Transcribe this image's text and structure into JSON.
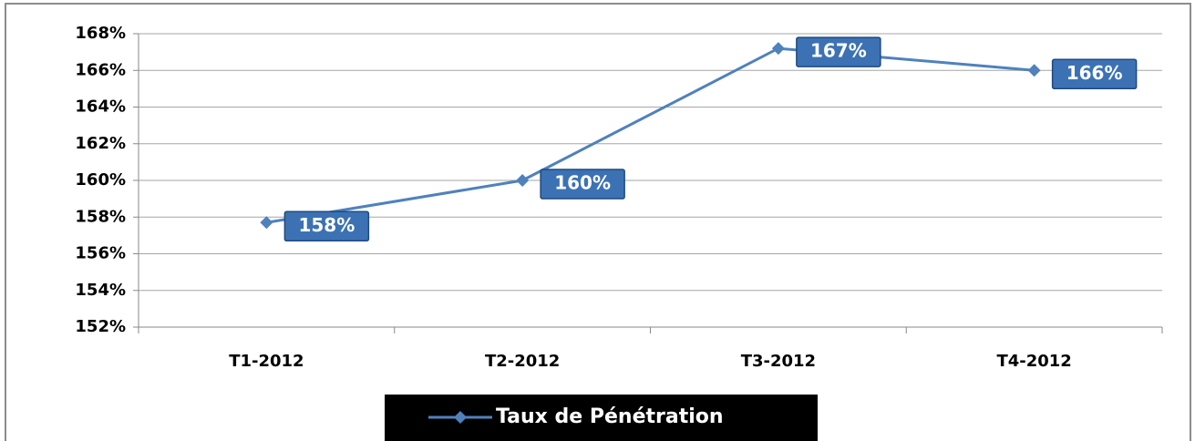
{
  "chart_data": {
    "type": "line",
    "categories": [
      "T1-2012",
      "T2-2012",
      "T3-2012",
      "T4-2012"
    ],
    "series": [
      {
        "name": "Taux de Pénétration",
        "color": "#4f81bd",
        "values": [
          157.7,
          160.0,
          167.2,
          166.0
        ],
        "value_labels": [
          "158%",
          "160%",
          "167%",
          "166%"
        ]
      }
    ],
    "ylim": [
      152,
      168
    ],
    "yticks": [
      {
        "value": 152,
        "label": "152%"
      },
      {
        "value": 154,
        "label": "154%"
      },
      {
        "value": 156,
        "label": "156%"
      },
      {
        "value": 158,
        "label": "158%"
      },
      {
        "value": 160,
        "label": "160%"
      },
      {
        "value": 162,
        "label": "162%"
      },
      {
        "value": 164,
        "label": "164%"
      },
      {
        "value": 166,
        "label": "166%"
      },
      {
        "value": 168,
        "label": "168%"
      }
    ],
    "grid": true,
    "legend": "bottom"
  }
}
